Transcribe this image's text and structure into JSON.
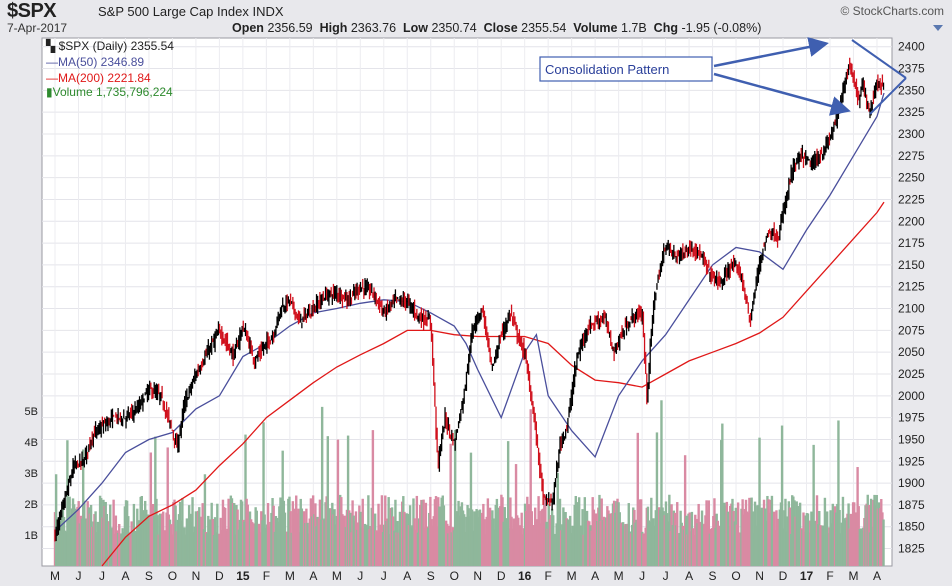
{
  "header": {
    "symbol": "$SPX",
    "name": "S&P 500 Large Cap Index",
    "exchange": "INDX",
    "date": "7-Apr-2017",
    "open_label": "Open",
    "open": "2356.59",
    "high_label": "High",
    "high": "2363.76",
    "low_label": "Low",
    "low": "2350.74",
    "close_label": "Close",
    "close": "2355.54",
    "volume_label": "Volume",
    "volume": "1.7B",
    "chg_label": "Chg",
    "chg": "-1.95 (-0.08%)",
    "brand": "© StockCharts.com"
  },
  "legend": {
    "price": "$SPX (Daily) 2355.54",
    "ma50": "MA(50) 2346.89",
    "ma200": "MA(200) 2221.84",
    "volume": "Volume 1,735,796,224"
  },
  "annotation": {
    "text": "Consolidation Pattern"
  },
  "colors": {
    "up": "#000000",
    "down": "#d0101c",
    "ma50": "#4a4f9c",
    "ma200": "#e01818",
    "vol_up": "#8fb79b",
    "vol_down": "#d98aa3",
    "annotation": "#3f5fb0"
  },
  "chart_data": {
    "type": "line",
    "title": "$SPX S&P 500 Large Cap Index",
    "x_ticks": [
      "M",
      "J",
      "J",
      "A",
      "S",
      "O",
      "N",
      "D",
      "15",
      "F",
      "M",
      "A",
      "M",
      "J",
      "J",
      "A",
      "S",
      "O",
      "N",
      "D",
      "16",
      "F",
      "M",
      "A",
      "M",
      "J",
      "J",
      "A",
      "S",
      "O",
      "N",
      "D",
      "17",
      "F",
      "M",
      "A"
    ],
    "y_ticks": [
      1825,
      1850,
      1875,
      1900,
      1925,
      1950,
      1975,
      2000,
      2025,
      2050,
      2075,
      2100,
      2125,
      2150,
      2175,
      2200,
      2225,
      2250,
      2275,
      2300,
      2325,
      2350,
      2375,
      2400
    ],
    "volume_ticks": [
      "1B",
      "2B",
      "3B",
      "4B",
      "5B"
    ],
    "ylim": [
      1805,
      2410
    ],
    "volume_ylim_billions": [
      0,
      6
    ],
    "x_index_range": [
      0,
      35.3
    ],
    "series": [
      {
        "name": "$SPX (Daily)",
        "style": "ohlc-bars",
        "x": [
          0,
          0.4,
          0.8,
          1.2,
          1.6,
          2,
          2.5,
          3,
          3.5,
          4,
          4.5,
          5,
          5.2,
          5.5,
          6,
          6.5,
          7,
          7.3,
          7.6,
          8,
          8.5,
          9,
          9.3,
          9.6,
          10,
          10.4,
          10.8,
          11,
          11.5,
          12,
          12.5,
          13,
          13.5,
          14,
          14.5,
          15,
          15.5,
          16,
          16.3,
          16.6,
          17,
          17.4,
          17.8,
          18.2,
          18.6,
          19,
          19.4,
          19.8,
          20,
          20.4,
          20.8,
          21.2,
          21.5,
          21.8,
          22.2,
          22.6,
          23,
          23.4,
          23.8,
          24.2,
          24.6,
          25,
          25.2,
          25.5,
          26,
          26.4,
          26.8,
          27.2,
          27.6,
          28,
          28.4,
          28.8,
          29.2,
          29.6,
          30,
          30.4,
          30.8,
          31,
          31.4,
          31.8,
          32.2,
          32.6,
          33,
          33.4,
          33.6,
          33.8,
          34,
          34.2,
          34.4,
          34.7,
          35,
          35.3
        ],
        "close": [
          1840,
          1880,
          1920,
          1925,
          1955,
          1965,
          1975,
          1975,
          1985,
          2008,
          2000,
          1960,
          1940,
          1990,
          2025,
          2050,
          2075,
          2060,
          2045,
          2080,
          2040,
          2060,
          2070,
          2100,
          2110,
          2085,
          2095,
          2100,
          2115,
          2118,
          2110,
          2125,
          2120,
          2095,
          2110,
          2108,
          2090,
          2085,
          1920,
          1975,
          1945,
          2000,
          2080,
          2100,
          2030,
          2070,
          2095,
          2060,
          2050,
          1975,
          1880,
          1880,
          1945,
          1965,
          2040,
          2075,
          2085,
          2090,
          2050,
          2075,
          2090,
          2095,
          2000,
          2110,
          2175,
          2160,
          2165,
          2170,
          2155,
          2135,
          2130,
          2150,
          2140,
          2085,
          2155,
          2190,
          2180,
          2210,
          2260,
          2275,
          2265,
          2275,
          2295,
          2330,
          2355,
          2380,
          2365,
          2340,
          2355,
          2325,
          2360,
          2355
        ]
      },
      {
        "name": "MA(50)",
        "style": "line",
        "x": [
          0,
          1,
          2,
          3,
          4,
          5,
          6,
          7,
          8,
          9,
          10,
          11,
          12,
          13,
          14,
          15,
          16,
          17,
          17.5,
          18,
          19,
          20,
          20.5,
          21,
          22,
          23,
          24,
          25,
          26,
          27,
          28,
          29,
          30,
          31,
          32,
          33,
          34,
          35,
          35.3
        ],
        "values": [
          1845,
          1870,
          1900,
          1935,
          1950,
          1958,
          1985,
          2000,
          2045,
          2060,
          2080,
          2095,
          2100,
          2106,
          2110,
          2108,
          2095,
          2080,
          2060,
          2030,
          1975,
          2050,
          2070,
          2000,
          1960,
          1930,
          2000,
          2040,
          2070,
          2110,
          2150,
          2170,
          2165,
          2145,
          2190,
          2230,
          2275,
          2320,
          2347
        ]
      },
      {
        "name": "MA(200)",
        "style": "line",
        "x": [
          2,
          3,
          4,
          5,
          6,
          7,
          8,
          9,
          10,
          11,
          12,
          13,
          14,
          15,
          16,
          17,
          18,
          19,
          20,
          21,
          22,
          23,
          24,
          25,
          26,
          27,
          28,
          29,
          30,
          31,
          32,
          33,
          34,
          35,
          35.3
        ],
        "values": [
          1805,
          1838,
          1862,
          1875,
          1892,
          1920,
          1945,
          1975,
          1995,
          2015,
          2033,
          2047,
          2060,
          2075,
          2075,
          2070,
          2068,
          2068,
          2068,
          2060,
          2035,
          2018,
          2015,
          2010,
          2025,
          2040,
          2050,
          2060,
          2072,
          2090,
          2120,
          2150,
          2180,
          2210,
          2222
        ]
      },
      {
        "name": "Volume",
        "style": "bars",
        "unit": "billions",
        "ylim": [
          0,
          6
        ]
      }
    ],
    "annotation": "Consolidation Pattern",
    "grid": true
  }
}
